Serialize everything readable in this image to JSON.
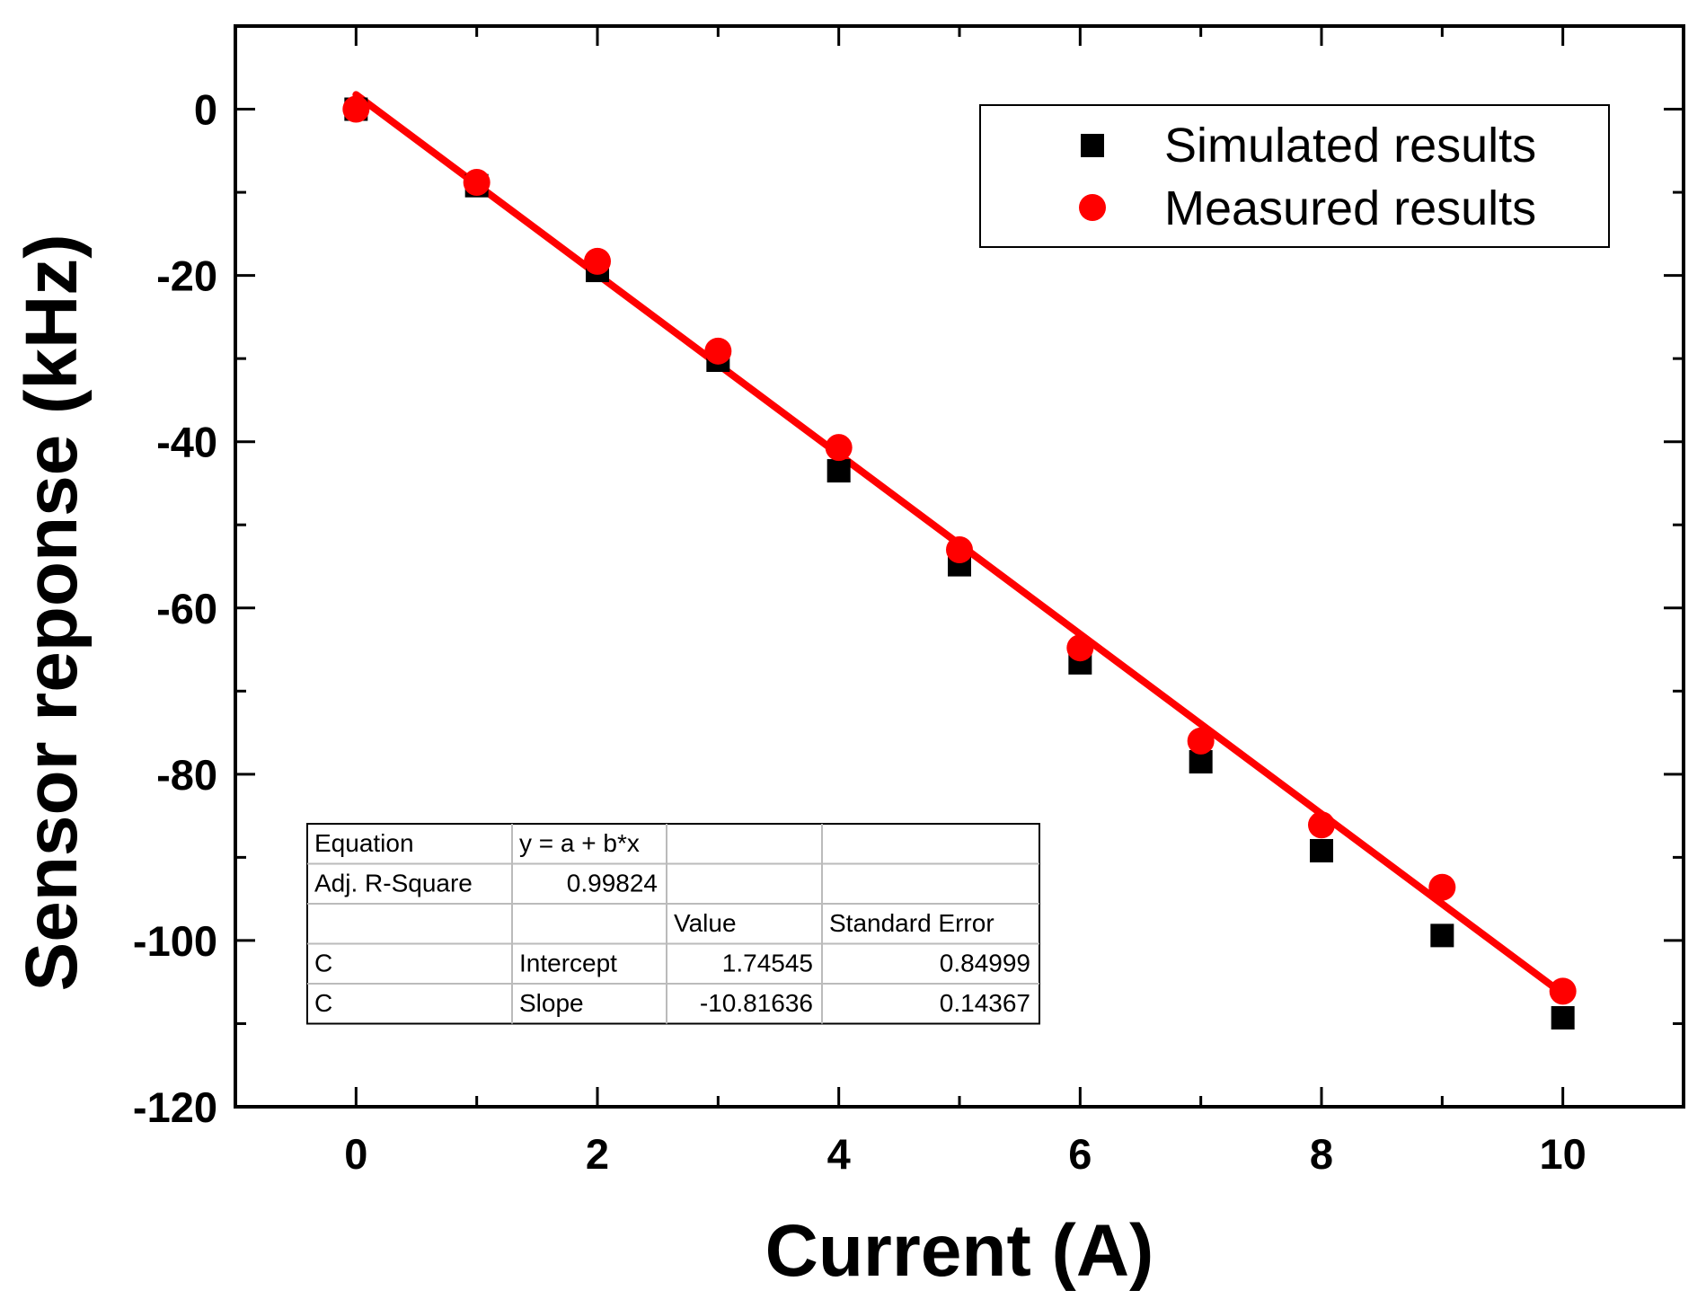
{
  "chart_data": {
    "type": "scatter",
    "title": "",
    "xlabel": "Current (A)",
    "ylabel": "Sensor reponse (kHz)",
    "xlim": [
      -1,
      11
    ],
    "ylim": [
      -120,
      10
    ],
    "xticks": [
      0,
      2,
      4,
      6,
      8,
      10
    ],
    "yticks": [
      0,
      -20,
      -40,
      -60,
      -80,
      -100,
      -120
    ],
    "grid": false,
    "legend_position": "top-right",
    "series": [
      {
        "name": "Simulated results",
        "marker": "square",
        "color": "#000000",
        "x": [
          0,
          1,
          2,
          3,
          4,
          5,
          6,
          7,
          8,
          9,
          10
        ],
        "y": [
          0,
          -9.2,
          -19.4,
          -30.2,
          -43.5,
          -54.8,
          -66.6,
          -78.5,
          -89.2,
          -99.4,
          -109.3
        ]
      },
      {
        "name": "Measured results",
        "marker": "circle",
        "color": "#ff0000",
        "x": [
          0,
          1,
          2,
          3,
          4,
          5,
          6,
          7,
          8,
          9,
          10
        ],
        "y": [
          0,
          -8.8,
          -18.3,
          -29.1,
          -40.7,
          -53.0,
          -64.8,
          -76.0,
          -86.1,
          -93.6,
          -106.1
        ]
      }
    ],
    "fit_line": {
      "color": "#ff0000",
      "intercept": 1.74545,
      "slope": -10.81636,
      "x_range": [
        0,
        10
      ]
    },
    "fit_table": {
      "rows": [
        [
          "Equation",
          "y = a + b*x",
          "",
          ""
        ],
        [
          "Adj. R-Square",
          "0.99824",
          "",
          ""
        ],
        [
          "",
          "",
          "Value",
          "Standard Error"
        ],
        [
          "C",
          "Intercept",
          "1.74545",
          "0.84999"
        ],
        [
          "C",
          "Slope",
          "-10.81636",
          "0.14367"
        ]
      ]
    }
  }
}
